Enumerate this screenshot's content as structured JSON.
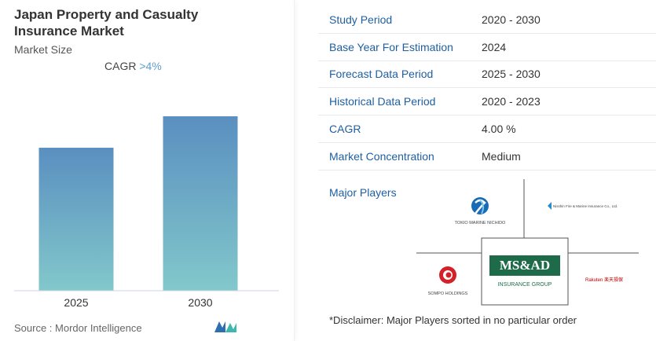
{
  "report": {
    "title": "Japan Property and Casualty Insurance Market",
    "subtitle": "Market Size",
    "cagr_label": "CAGR",
    "cagr_value": ">4%",
    "source": "Source :  Mordor Intelligence"
  },
  "chart_data": {
    "type": "bar",
    "title": "Japan Property and Casualty Insurance Market",
    "subtitle": "Market Size",
    "categories": [
      "2025",
      "2030"
    ],
    "values": [
      1.0,
      1.22
    ],
    "xlabel": "",
    "ylabel": "",
    "grid": false,
    "colors": {
      "bar_top": "#5a8fc0",
      "bar_bottom": "#82c8cb"
    }
  },
  "info": {
    "rows": [
      {
        "label": "Study Period",
        "value": "2020 - 2030"
      },
      {
        "label": "Base Year For Estimation",
        "value": "2024"
      },
      {
        "label": "Forecast Data Period",
        "value": "2025 - 2030"
      },
      {
        "label": "Historical Data Period",
        "value": "2020 - 2023"
      },
      {
        "label": "CAGR",
        "value": "4.00 %"
      },
      {
        "label": "Market Concentration",
        "value": "Medium"
      }
    ],
    "players_label": "Major Players",
    "disclaimer": "*Disclaimer: Major Players sorted in no particular order"
  },
  "players": {
    "tokio": "TOKIO MARINE NICHIDO",
    "nisshin": "Nisshin Fire & Marine Insurance Co., Ltd.",
    "sompo": "SOMPO HOLDINGS",
    "msad": "MS&AD",
    "msad_sub": "INSURANCE GROUP",
    "rakuten": "Rakuten 楽天損保"
  }
}
